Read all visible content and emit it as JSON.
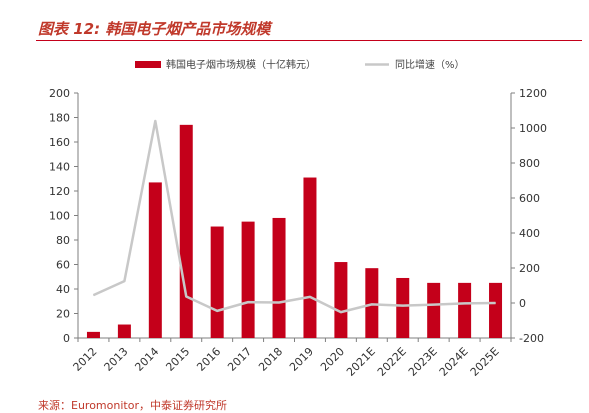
{
  "figure": {
    "title": "图表 12:  韩国电子烟产品市场规模",
    "source": "来源：Euromonitor，中泰证券研究所"
  },
  "chart_data": {
    "type": "bar",
    "categories": [
      "2012",
      "2013",
      "2014",
      "2015",
      "2016",
      "2017",
      "2018",
      "2019",
      "2020",
      "2021E",
      "2022E",
      "2023E",
      "2024E",
      "2025E"
    ],
    "series": [
      {
        "name": "韩国电子烟市场规模（十亿韩元）",
        "type": "bar",
        "axis": "left",
        "color": "#c4001a",
        "values": [
          5,
          11,
          127,
          174,
          91,
          95,
          98,
          131,
          62,
          57,
          49,
          45,
          45,
          45
        ]
      },
      {
        "name": "同比增速（%）",
        "type": "line",
        "axis": "right",
        "color": "#c8c8c8",
        "values": [
          45,
          125,
          1040,
          37,
          -45,
          5,
          3,
          35,
          -52,
          -8,
          -15,
          -9,
          -2,
          0
        ]
      }
    ],
    "left_axis": {
      "min": 0,
      "max": 200,
      "ticks": [
        "0",
        "20",
        "40",
        "60",
        "80",
        "100",
        "120",
        "140",
        "160",
        "180",
        "200"
      ]
    },
    "right_axis": {
      "min": -200,
      "max": 1200,
      "ticks": [
        "-200",
        "0",
        "200",
        "400",
        "600",
        "800",
        "1000",
        "1200"
      ]
    },
    "legend_position": "top",
    "grid": false
  }
}
